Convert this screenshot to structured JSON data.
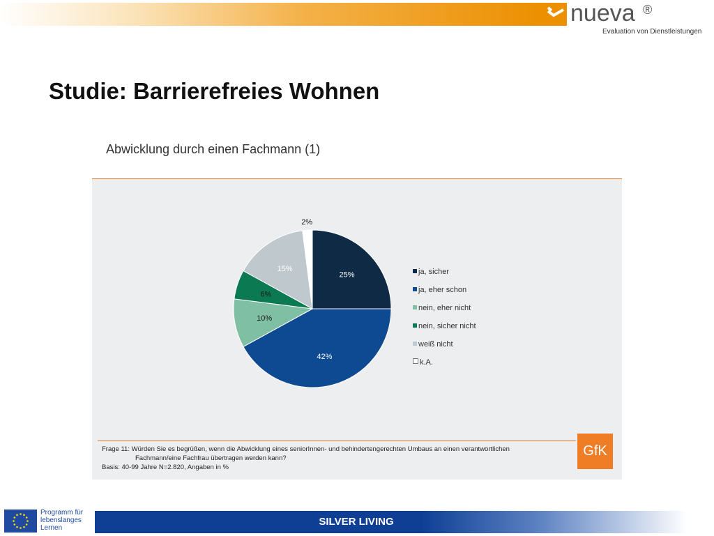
{
  "header": {
    "logo_text": "nueva",
    "logo_registered": "®",
    "logo_subtitle": "Evaluation von Dienstleistungen",
    "logo_color": "#ec8f00"
  },
  "page": {
    "title": "Studie: Barrierefreies Wohnen"
  },
  "chart": {
    "title": "Abwicklung durch einen Fachmann (1)"
  },
  "chart_data": {
    "type": "pie",
    "title": "Abwicklung durch einen Fachmann (1)",
    "categories": [
      "ja, sicher",
      "ja, eher schon",
      "nein, eher nicht",
      "nein, sicher nicht",
      "weiß nicht",
      "k.A."
    ],
    "values": [
      25,
      42,
      10,
      6,
      15,
      2
    ],
    "labels": [
      "25%",
      "42%",
      "10%",
      "6%",
      "15%",
      "2%"
    ],
    "colors": [
      "#0f2a45",
      "#0e4a91",
      "#7fbfa3",
      "#0b7a53",
      "#bfc8cc",
      "#ffffff"
    ],
    "legend_position": "right"
  },
  "footnote": {
    "line1": "Frage 11:  Würden Sie es begrüßen, wenn die Abwicklung eines seniorInnen- und behindertengerechten Umbaus an einen verantwortlichen",
    "line2": "Fachmann/eine Fachfrau übertragen werden kann?",
    "line3": "Basis: 40-99 Jahre N=2.820, Angaben in %"
  },
  "gfk_logo": "GfK",
  "footer": {
    "eu_program_line1": "Programm für",
    "eu_program_line2": "lebenslanges",
    "eu_program_line3": "Lernen",
    "bar_text": "SILVER LIVING"
  }
}
